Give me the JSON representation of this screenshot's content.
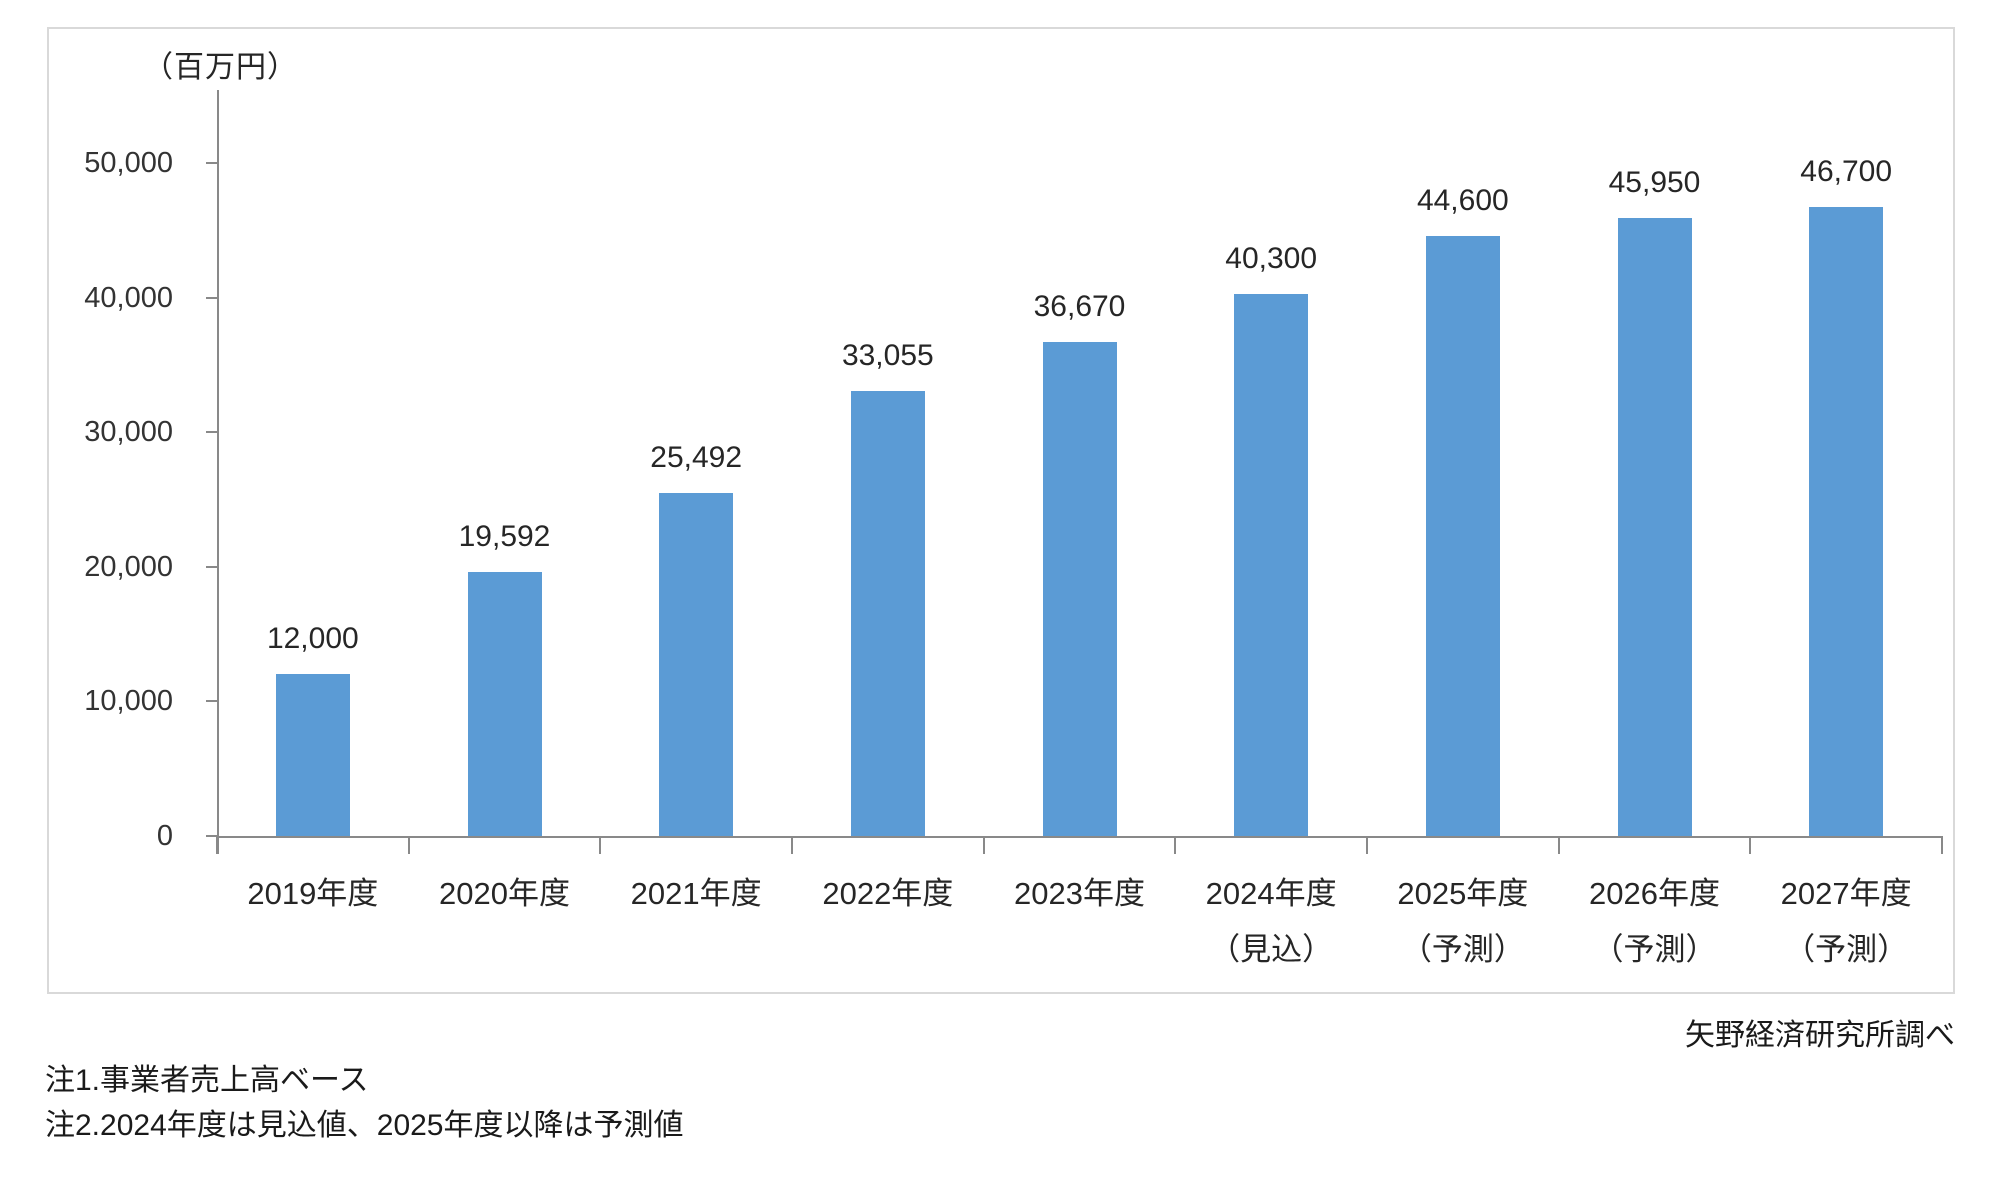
{
  "chart_data": {
    "type": "bar",
    "unit_label": "（百万円）",
    "categories": [
      "2019年度",
      "2020年度",
      "2021年度",
      "2022年度",
      "2023年度",
      "2024年度",
      "2025年度",
      "2026年度",
      "2027年度"
    ],
    "category_sublabels": [
      "",
      "",
      "",
      "",
      "",
      "（見込）",
      "（予測）",
      "（予測）",
      "（予測）"
    ],
    "values": [
      12000,
      19592,
      25492,
      33055,
      36670,
      40300,
      44600,
      45950,
      46700
    ],
    "value_labels": [
      "12,000",
      "19,592",
      "25,492",
      "33,055",
      "36,670",
      "40,300",
      "44,600",
      "45,950",
      "46,700"
    ],
    "y_ticks": [
      0,
      10000,
      20000,
      30000,
      40000,
      50000
    ],
    "y_tick_labels": [
      "0",
      "10,000",
      "20,000",
      "30,000",
      "40,000",
      "50,000"
    ],
    "ylim": [
      0,
      50000
    ],
    "grid": false,
    "legend": false,
    "bar_color": "#5b9bd5",
    "axis_color": "#898989",
    "source": "矢野経済研究所調べ",
    "notes": [
      "注1.事業者売上高ベース",
      "注2.2024年度は見込値、2025年度以降は予測値"
    ]
  }
}
